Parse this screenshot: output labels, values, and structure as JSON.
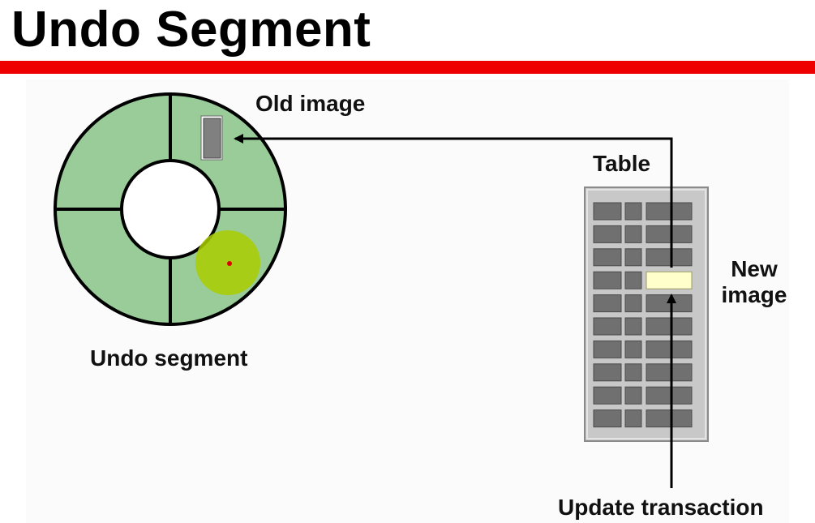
{
  "title": "Undo Segment",
  "labels": {
    "old_image": "Old image",
    "table": "Table",
    "new_image": "New image",
    "undo_segment": "Undo segment",
    "update_transaction": "Update transaction"
  },
  "colors": {
    "title_rule": "#ee0000",
    "ring_fill": "#99cc99",
    "table_body": "#c8c8c8",
    "table_cell": "#707070",
    "new_image_cell": "#ffffcc",
    "old_image_block": "#808080",
    "pointer_highlight": "#aacc00"
  }
}
